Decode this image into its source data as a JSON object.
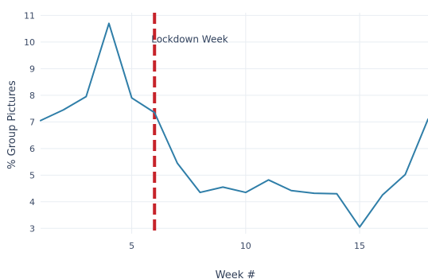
{
  "chart_data": {
    "type": "line",
    "x": [
      1,
      2,
      3,
      4,
      5,
      6,
      7,
      8,
      9,
      10,
      11,
      12,
      13,
      14,
      15,
      16,
      17,
      18
    ],
    "series": [
      {
        "values": [
          7.05,
          7.45,
          7.95,
          10.7,
          7.9,
          7.35,
          5.45,
          4.35,
          4.55,
          4.35,
          4.82,
          4.42,
          4.32,
          4.3,
          3.05,
          4.25,
          5.02,
          7.1
        ],
        "color": "#2f7ea8"
      }
    ],
    "xlabel": "Week #",
    "ylabel": "% Group Pictures",
    "xlim": [
      1,
      18
    ],
    "ylim": [
      2.8,
      11.1
    ],
    "x_ticks": [
      5,
      10,
      15
    ],
    "y_ticks": [
      3,
      4,
      5,
      6,
      7,
      8,
      9,
      10,
      11
    ],
    "grid": true,
    "reference_line": {
      "x": 6,
      "color": "#c6232a",
      "style": "dashed"
    },
    "annotation": {
      "text": "Lockdown Week",
      "x": 6,
      "y": 10.1
    }
  }
}
